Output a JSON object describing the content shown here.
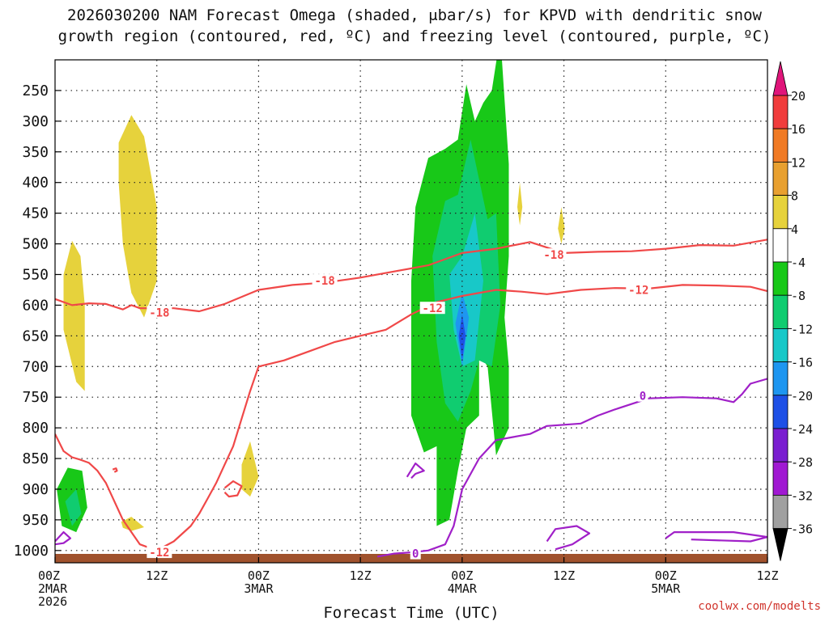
{
  "title": {
    "line1": "2026030200 NAM Forecast Omega (shaded, μbar/s) for KPVD with dendritic snow",
    "line2": "growth region (contoured, red, ºC) and freezing level (contoured, purple, ºC)"
  },
  "credit": "coolwx.com/modelts",
  "chart_data": {
    "type": "heatmap",
    "title": "2026030200 NAM Forecast Omega (shaded, μbar/s) for KPVD with dendritic snow growth region (contoured, red, ºC) and freezing level (contoured, purple, ºC)",
    "xlabel": "Forecast Time (UTC)",
    "ylabel": "",
    "x_units": "forecast hour",
    "xlim": [
      0,
      84
    ],
    "y_units": "hPa",
    "ylim": [
      1020,
      200
    ],
    "y_ticks": [
      250,
      300,
      350,
      400,
      450,
      500,
      550,
      600,
      650,
      700,
      750,
      800,
      850,
      900,
      950,
      1000
    ],
    "x_ticks": [
      {
        "hour": 0,
        "lines": [
          "00Z",
          "2MAR",
          "2026"
        ]
      },
      {
        "hour": 12,
        "lines": [
          "12Z"
        ]
      },
      {
        "hour": 24,
        "lines": [
          "00Z",
          "3MAR"
        ]
      },
      {
        "hour": 36,
        "lines": [
          "12Z"
        ]
      },
      {
        "hour": 48,
        "lines": [
          "00Z",
          "4MAR"
        ]
      },
      {
        "hour": 60,
        "lines": [
          "12Z"
        ]
      },
      {
        "hour": 72,
        "lines": [
          "00Z",
          "5MAR"
        ]
      },
      {
        "hour": 84,
        "lines": [
          "12Z"
        ]
      }
    ],
    "colorbar": {
      "labels": [
        "20",
        "16",
        "12",
        "8",
        "4",
        "-4",
        "-8",
        "-12",
        "-16",
        "-20",
        "-24",
        "-28",
        "-32",
        "-36"
      ],
      "colors": [
        "#f03c3c",
        "#f07a24",
        "#e8a030",
        "#e6d23c",
        "#ffffff",
        "#18c818",
        "#10cc70",
        "#18c8c8",
        "#1e96f0",
        "#1e50e6",
        "#7a1ed0",
        "#a018d2",
        "#a0a0a0"
      ],
      "top_arrow": "#e0157a",
      "bottom_arrow": "#000000"
    },
    "shaded_regions": [
      {
        "level": "4",
        "color": "#e6d23c",
        "points": [
          [
            1.0,
            550
          ],
          [
            2.0,
            495
          ],
          [
            3.0,
            520
          ],
          [
            3.5,
            600
          ],
          [
            3.5,
            740
          ],
          [
            2.5,
            725
          ],
          [
            1.0,
            640
          ]
        ]
      },
      {
        "level": "4",
        "color": "#e6d23c",
        "points": [
          [
            7.5,
            335
          ],
          [
            9.0,
            290
          ],
          [
            10.5,
            325
          ],
          [
            12.0,
            440
          ],
          [
            12.0,
            560
          ],
          [
            10.5,
            620
          ],
          [
            9.0,
            580
          ],
          [
            8.0,
            500
          ],
          [
            7.5,
            400
          ]
        ]
      },
      {
        "level": "4",
        "color": "#e6d23c",
        "points": [
          [
            22.0,
            860
          ],
          [
            23.0,
            822
          ],
          [
            24.0,
            880
          ],
          [
            23.0,
            912
          ],
          [
            22.0,
            900
          ]
        ]
      },
      {
        "level": "4",
        "color": "#e6d23c",
        "points": [
          [
            7.8,
            953
          ],
          [
            9.0,
            945
          ],
          [
            10.5,
            962
          ],
          [
            9.0,
            968
          ],
          [
            8.0,
            963
          ]
        ]
      },
      {
        "level": "4",
        "color": "#e6d23c",
        "points": [
          [
            54.5,
            440
          ],
          [
            54.8,
            400
          ],
          [
            55.1,
            440
          ],
          [
            54.8,
            470
          ]
        ]
      },
      {
        "level": "4",
        "color": "#e6d23c",
        "points": [
          [
            59.3,
            475
          ],
          [
            59.7,
            440
          ],
          [
            60.1,
            475
          ],
          [
            59.7,
            500
          ]
        ]
      },
      {
        "level": "-4",
        "color": "#18c818",
        "points": [
          [
            0.2,
            900
          ],
          [
            1.5,
            865
          ],
          [
            3.2,
            870
          ],
          [
            3.8,
            930
          ],
          [
            2.5,
            970
          ],
          [
            0.8,
            960
          ]
        ]
      },
      {
        "level": "-8",
        "color": "#10cc70",
        "points": [
          [
            1.2,
            920
          ],
          [
            2.5,
            900
          ],
          [
            3.1,
            940
          ],
          [
            2.0,
            960
          ]
        ]
      },
      {
        "level": "-4",
        "color": "#18c818",
        "points": [
          [
            42.5,
            440
          ],
          [
            44.0,
            360
          ],
          [
            46.0,
            345
          ],
          [
            47.5,
            330
          ],
          [
            48.5,
            240
          ],
          [
            49.5,
            300
          ],
          [
            50.5,
            270
          ],
          [
            51.5,
            250
          ],
          [
            52.5,
            160
          ],
          [
            53.5,
            370
          ],
          [
            53.5,
            520
          ],
          [
            53.0,
            620
          ],
          [
            53.5,
            700
          ],
          [
            53.5,
            800
          ],
          [
            52.0,
            845
          ],
          [
            51.0,
            700
          ],
          [
            50.0,
            680
          ],
          [
            50.0,
            780
          ],
          [
            48.5,
            800
          ],
          [
            47.5,
            870
          ],
          [
            46.5,
            950
          ],
          [
            45.0,
            960
          ],
          [
            45.0,
            830
          ],
          [
            43.5,
            840
          ],
          [
            42.0,
            780
          ],
          [
            42.0,
            560
          ]
        ]
      },
      {
        "level": "-8",
        "color": "#10cc70",
        "points": [
          [
            44.5,
            520
          ],
          [
            46.0,
            430
          ],
          [
            47.5,
            420
          ],
          [
            49.0,
            330
          ],
          [
            51.0,
            460
          ],
          [
            52.0,
            450
          ],
          [
            52.5,
            600
          ],
          [
            51.5,
            700
          ],
          [
            50.0,
            690
          ],
          [
            49.0,
            740
          ],
          [
            47.5,
            790
          ],
          [
            46.0,
            760
          ],
          [
            45.0,
            660
          ]
        ]
      },
      {
        "level": "-12",
        "color": "#18c8c8",
        "points": [
          [
            46.5,
            550
          ],
          [
            48.0,
            520
          ],
          [
            49.5,
            450
          ],
          [
            50.5,
            560
          ],
          [
            49.5,
            690
          ],
          [
            48.0,
            700
          ],
          [
            47.0,
            640
          ]
        ]
      },
      {
        "level": "-16",
        "color": "#1e96f0",
        "points": [
          [
            47.2,
            630
          ],
          [
            48.0,
            580
          ],
          [
            48.8,
            620
          ],
          [
            48.0,
            700
          ]
        ]
      },
      {
        "level": "-20",
        "color": "#1e50e6",
        "points": [
          [
            47.6,
            650
          ],
          [
            48.0,
            615
          ],
          [
            48.4,
            650
          ],
          [
            48.0,
            690
          ]
        ]
      }
    ],
    "contours": [
      {
        "name": "-18",
        "color": "#f04848",
        "points": [
          [
            0,
            590
          ],
          [
            2,
            600
          ],
          [
            4,
            597
          ],
          [
            6,
            598
          ],
          [
            8,
            607
          ],
          [
            9,
            600
          ],
          [
            10,
            605
          ],
          [
            14,
            605
          ],
          [
            17,
            610
          ],
          [
            20,
            598
          ],
          [
            24,
            575
          ],
          [
            28,
            567
          ],
          [
            32,
            563
          ],
          [
            36,
            555
          ],
          [
            40,
            545
          ],
          [
            44,
            535
          ],
          [
            48,
            515
          ],
          [
            52,
            508
          ],
          [
            56,
            497
          ],
          [
            60,
            515
          ],
          [
            64,
            513
          ],
          [
            68,
            512
          ],
          [
            72,
            508
          ],
          [
            76,
            502
          ],
          [
            80,
            503
          ],
          [
            84,
            493
          ]
        ],
        "labels": [
          {
            "text": "-18",
            "x": 12.3,
            "y": 612
          },
          {
            "text": "-18",
            "x": 31.8,
            "y": 560
          },
          {
            "text": "-18",
            "x": 58.8,
            "y": 518
          }
        ]
      },
      {
        "name": "-12",
        "color": "#f04848",
        "points": [
          [
            0,
            810
          ],
          [
            1,
            838
          ],
          [
            2,
            848
          ],
          [
            3,
            852
          ],
          [
            4,
            857
          ],
          [
            5,
            870
          ],
          [
            6,
            890
          ],
          [
            7,
            920
          ],
          [
            8,
            950
          ],
          [
            10,
            990
          ],
          [
            12,
            1000
          ],
          [
            14,
            985
          ],
          [
            16,
            960
          ],
          [
            17,
            940
          ],
          [
            18,
            915
          ],
          [
            19,
            890
          ],
          [
            20,
            860
          ],
          [
            21,
            830
          ],
          [
            22,
            785
          ],
          [
            23,
            740
          ],
          [
            24,
            700
          ],
          [
            27,
            690
          ],
          [
            30,
            675
          ],
          [
            33,
            660
          ],
          [
            36,
            650
          ],
          [
            39,
            640
          ],
          [
            42,
            615
          ],
          [
            45,
            595
          ],
          [
            48,
            585
          ],
          [
            52,
            575
          ],
          [
            55,
            578
          ],
          [
            58,
            582
          ],
          [
            62,
            575
          ],
          [
            66,
            572
          ],
          [
            70,
            573
          ],
          [
            74,
            567
          ],
          [
            78,
            568
          ],
          [
            82,
            570
          ],
          [
            84,
            577
          ]
        ],
        "labels": [
          {
            "text": "-12",
            "x": 12.3,
            "y": 1003
          },
          {
            "text": "-12",
            "x": 44.5,
            "y": 605
          },
          {
            "text": "-12",
            "x": 68.8,
            "y": 575
          }
        ]
      },
      {
        "name": "-12",
        "color": "#f04848",
        "points": [
          [
            20,
            898
          ],
          [
            21,
            887
          ],
          [
            22,
            895
          ],
          [
            21.5,
            910
          ],
          [
            20.5,
            912
          ],
          [
            20,
            905
          ]
        ],
        "labels": []
      },
      {
        "name": "-12",
        "color": "#f04848",
        "points": [
          [
            6.8,
            868
          ],
          [
            7.2,
            866
          ],
          [
            7.3,
            870
          ],
          [
            7.0,
            872
          ]
        ],
        "labels": []
      },
      {
        "name": "0",
        "color": "#a020c8",
        "points": [
          [
            38,
            1010
          ],
          [
            40,
            1005
          ],
          [
            42,
            1003
          ],
          [
            44,
            1000
          ],
          [
            46,
            990
          ],
          [
            47,
            960
          ],
          [
            48,
            900
          ],
          [
            50,
            850
          ],
          [
            52,
            820
          ],
          [
            54,
            815
          ],
          [
            56,
            810
          ],
          [
            58,
            797
          ],
          [
            60,
            795
          ],
          [
            62,
            793
          ],
          [
            64,
            780
          ],
          [
            66,
            770
          ],
          [
            70,
            752
          ],
          [
            74,
            750
          ],
          [
            78,
            752
          ],
          [
            80,
            758
          ],
          [
            81,
            745
          ],
          [
            82,
            728
          ],
          [
            84,
            720
          ]
        ],
        "labels": [
          {
            "text": "0",
            "x": 42.5,
            "y": 1005
          },
          {
            "text": "0",
            "x": 69.3,
            "y": 748
          }
        ]
      },
      {
        "name": "0",
        "color": "#a020c8",
        "points": [
          [
            41.5,
            880
          ],
          [
            42.5,
            858
          ],
          [
            43.5,
            870
          ],
          [
            42.5,
            875
          ],
          [
            42,
            882
          ]
        ],
        "labels": []
      },
      {
        "name": "0",
        "color": "#a020c8",
        "points": [
          [
            0,
            985
          ],
          [
            1,
            970
          ],
          [
            1.8,
            980
          ],
          [
            1,
            988
          ],
          [
            0,
            990
          ]
        ],
        "labels": []
      },
      {
        "name": "0",
        "color": "#a020c8",
        "points": [
          [
            58,
            985
          ],
          [
            59,
            965
          ],
          [
            61.5,
            960
          ],
          [
            63,
            972
          ],
          [
            61,
            990
          ],
          [
            59,
            998
          ]
        ],
        "labels": []
      },
      {
        "name": "0",
        "color": "#a020c8",
        "points": [
          [
            72,
            980
          ],
          [
            73,
            970
          ],
          [
            80,
            970
          ],
          [
            84,
            978
          ],
          [
            82,
            985
          ],
          [
            75,
            982
          ]
        ],
        "labels": []
      }
    ],
    "ground_band": {
      "color": "#a0522d"
    }
  }
}
